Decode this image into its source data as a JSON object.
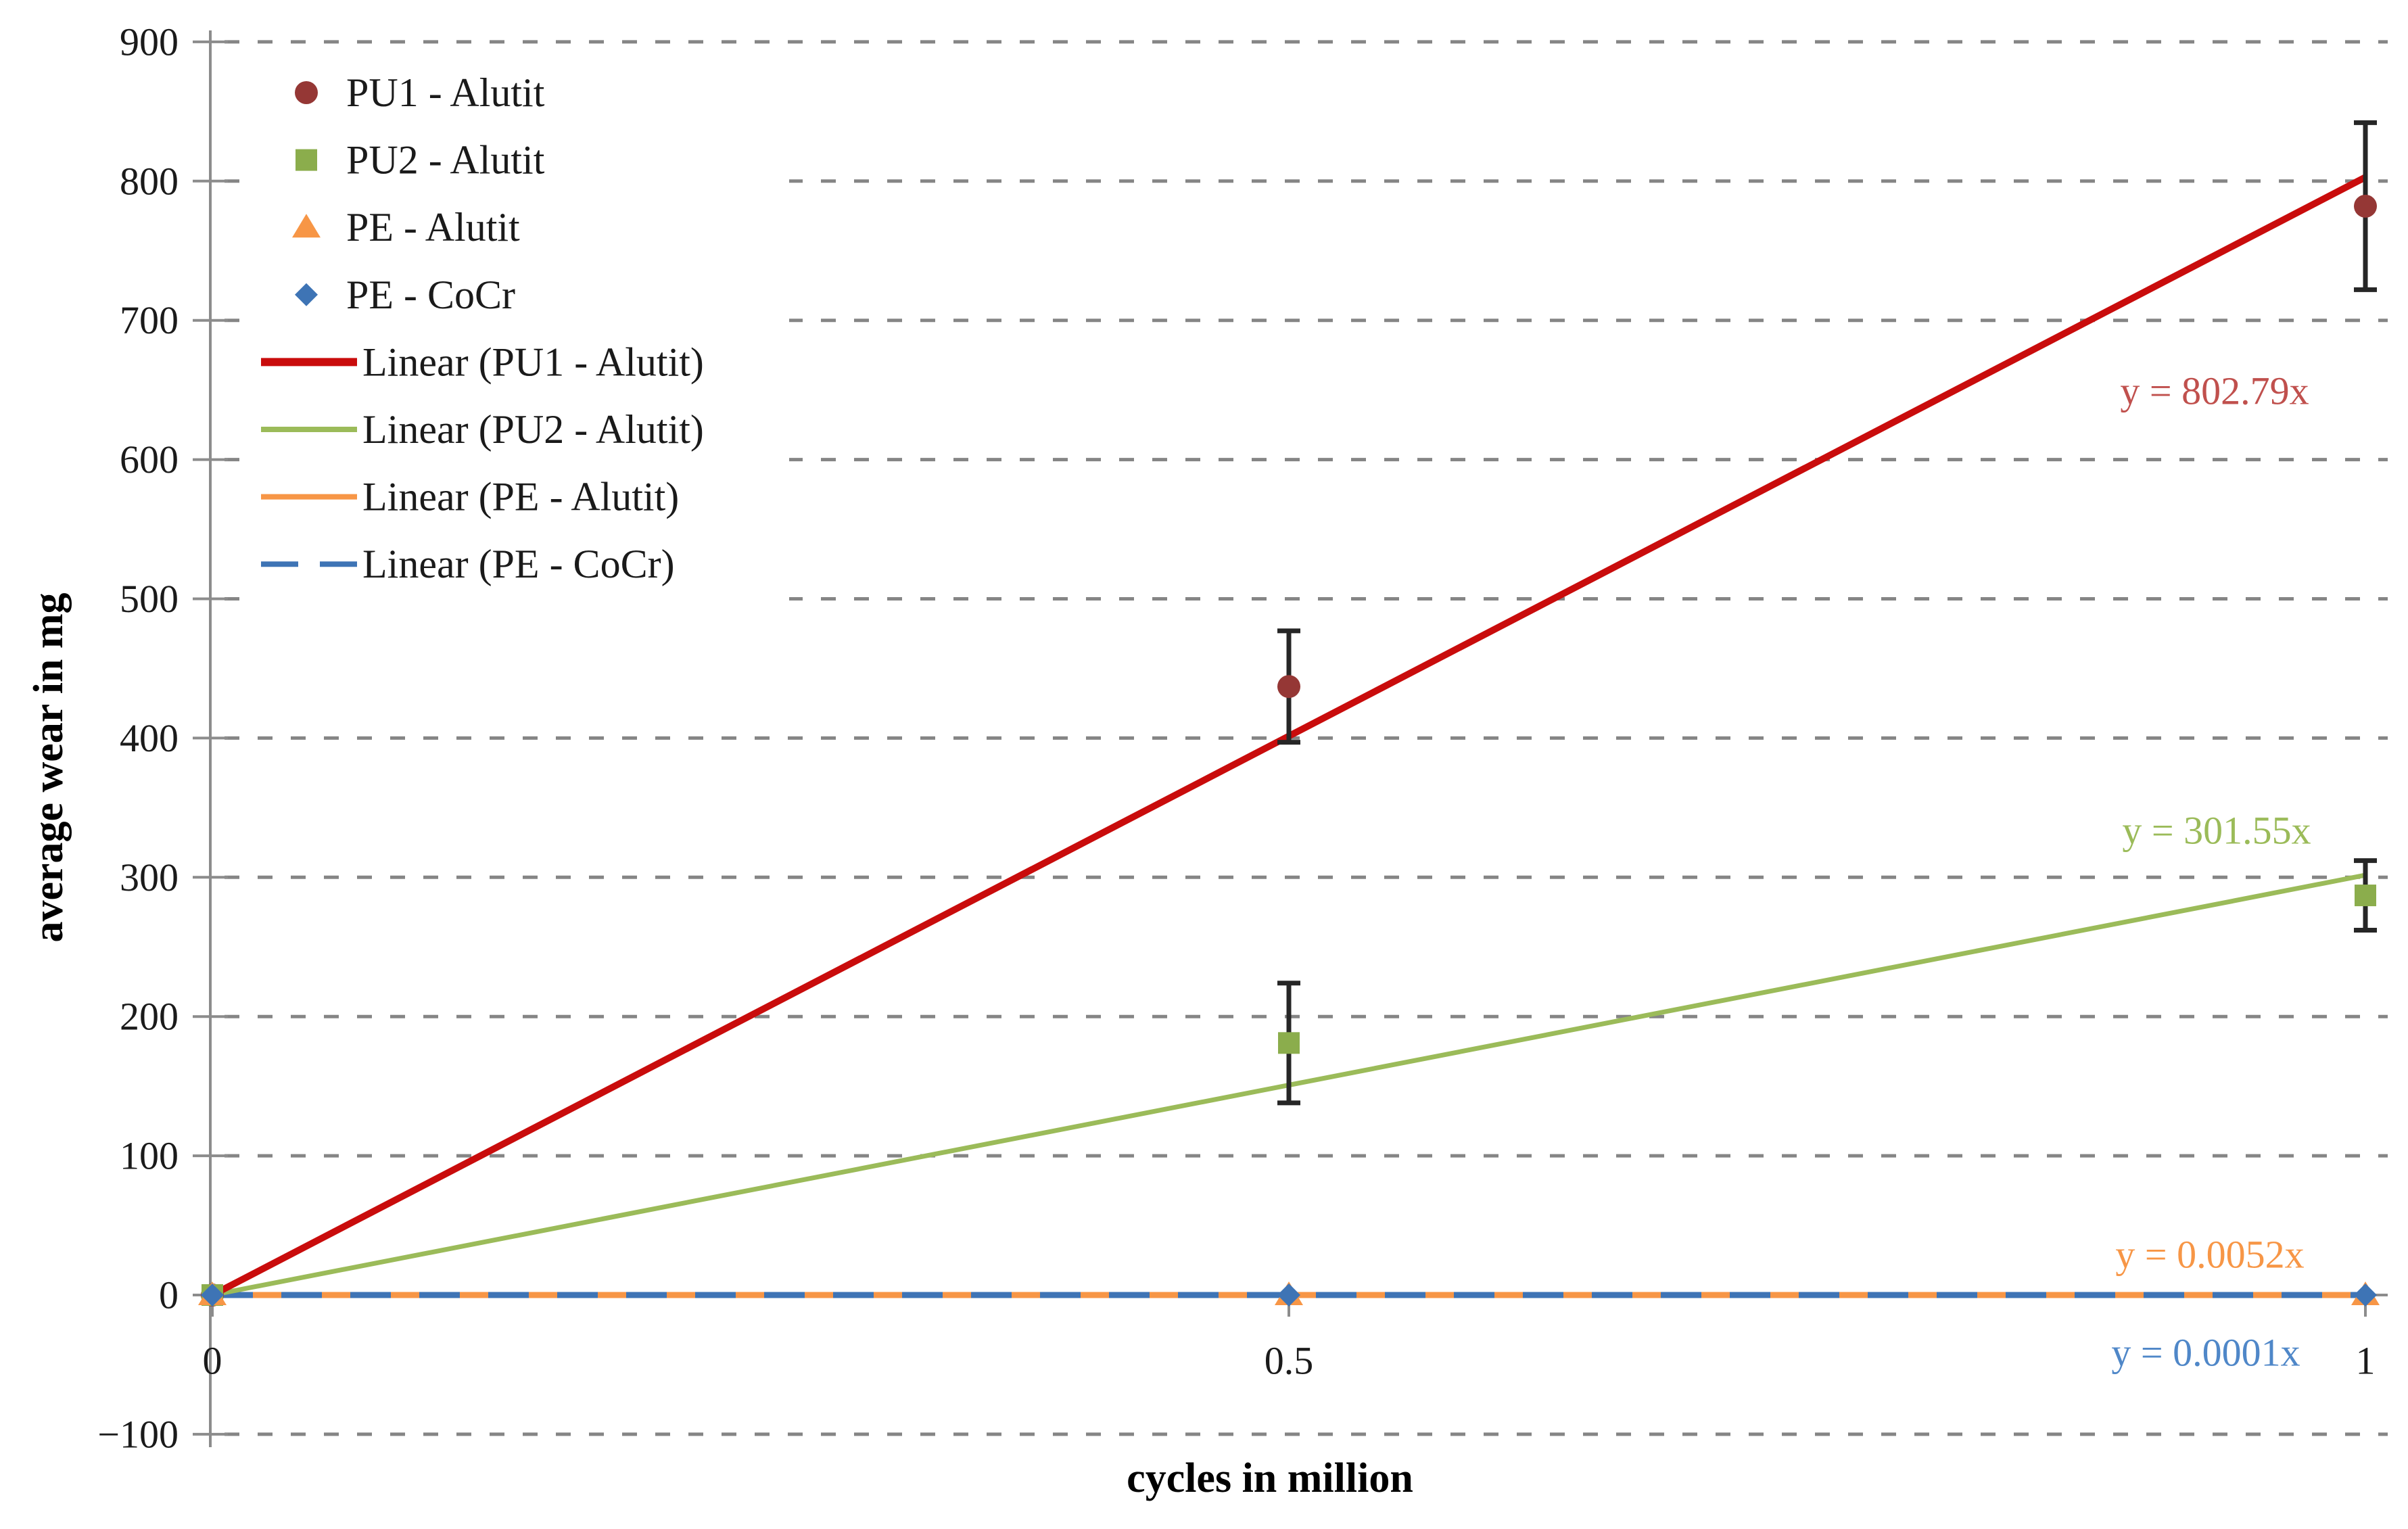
{
  "chart_data": {
    "type": "scatter",
    "title": "",
    "xlabel": "cycles in million",
    "ylabel": "average wear in mg",
    "xlim": [
      0,
      1
    ],
    "ylim": [
      -100,
      900
    ],
    "grid": {
      "horizontal": true,
      "style": "dashed",
      "color": "#858585"
    },
    "legend_position": "top-left",
    "x_ticks": [
      0,
      0.5,
      1
    ],
    "x_tick_labels": [
      "0",
      "0.5",
      "1"
    ],
    "y_ticks": [
      900,
      800,
      700,
      600,
      500,
      400,
      300,
      200,
      100,
      0,
      -100
    ],
    "y_tick_labels": [
      "900",
      "800",
      "700",
      "600",
      "500",
      "400",
      "300",
      "200",
      "100",
      "0",
      "−100"
    ],
    "series": [
      {
        "name": "PU1 - Alutit",
        "marker": "circle",
        "color": "#953735",
        "points": [
          {
            "x": 0,
            "y": 0,
            "err": 0
          },
          {
            "x": 0.5,
            "y": 437,
            "err": 40
          },
          {
            "x": 1,
            "y": 782,
            "err": 60
          }
        ]
      },
      {
        "name": "PU2 - Alutit",
        "marker": "square",
        "color": "#8BAD4C",
        "points": [
          {
            "x": 0,
            "y": 0,
            "err": 0
          },
          {
            "x": 0.5,
            "y": 181,
            "err": 43
          },
          {
            "x": 1,
            "y": 287,
            "err": 25
          }
        ]
      },
      {
        "name": "PE - Alutit",
        "marker": "triangle",
        "color": "#F79646",
        "points": [
          {
            "x": 0,
            "y": 0,
            "err": 0
          },
          {
            "x": 0.5,
            "y": 0,
            "err": 0
          },
          {
            "x": 1,
            "y": 0,
            "err": 0
          }
        ]
      },
      {
        "name": "PE - CoCr",
        "marker": "diamond",
        "color": "#3E74B5",
        "points": [
          {
            "x": 0,
            "y": 0,
            "err": 0
          },
          {
            "x": 0.5,
            "y": 0,
            "err": 0
          },
          {
            "x": 1,
            "y": 0,
            "err": 0
          }
        ]
      }
    ],
    "trendlines": [
      {
        "name": "Linear (PU1 - Alutit)",
        "slope": 802.79,
        "equation": "y = 802.79x",
        "color": "#C90C0C",
        "equation_color": "#C0504D",
        "style": "solid",
        "width": 10
      },
      {
        "name": "Linear (PU2 - Alutit)",
        "slope": 301.55,
        "equation": "y = 301.55x",
        "color": "#9BBB59",
        "equation_color": "#9BBB59",
        "style": "solid",
        "width": 7
      },
      {
        "name": "Linear (PE - Alutit)",
        "slope": 0.0052,
        "equation": "y = 0.0052x",
        "color": "#F79646",
        "equation_color": "#F79646",
        "style": "solid",
        "width": 9
      },
      {
        "name": "Linear (PE - CoCr)",
        "slope": 0.0001,
        "equation": "y = 0.0001x",
        "color": "#3E74B5",
        "equation_color": "#4F87C8",
        "style": "dashed",
        "width": 9
      }
    ],
    "equation_positions": [
      [
        3275,
        578
      ],
      [
        3278,
        1228
      ],
      [
        3268,
        1855
      ],
      [
        3262,
        2000
      ]
    ]
  }
}
